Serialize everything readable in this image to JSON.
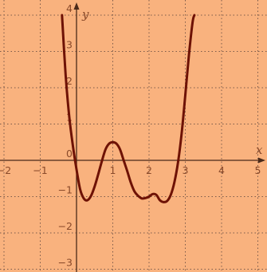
{
  "colors": {
    "background": "#f9b27e",
    "grid": "#7a5a4a",
    "axis": "#4a2a1a",
    "curve": "#6e1205",
    "text": "#8a4a2a"
  },
  "chart_data": {
    "type": "line",
    "title": "",
    "xlabel": "x",
    "ylabel": "y",
    "xlim": [
      -2.1,
      5.1
    ],
    "ylim": [
      -3.15,
      4.1
    ],
    "grid": true,
    "grid_style": "dotted",
    "x_ticks": [
      {
        "value": -2,
        "label": "−2"
      },
      {
        "value": -1,
        "label": "−1"
      },
      {
        "value": 1,
        "label": "1"
      },
      {
        "value": 2,
        "label": "2"
      },
      {
        "value": 3,
        "label": "3"
      },
      {
        "value": 4,
        "label": "4"
      },
      {
        "value": 5,
        "label": "5"
      }
    ],
    "y_ticks": [
      {
        "value": -3,
        "label": "−3"
      },
      {
        "value": -2,
        "label": "−2"
      },
      {
        "value": -1,
        "label": "−1"
      },
      {
        "value": 0,
        "label": "0"
      },
      {
        "value": 1,
        "label": "1"
      },
      {
        "value": 2,
        "label": "2"
      },
      {
        "value": 3,
        "label": "3"
      },
      {
        "value": 4,
        "label": "4"
      }
    ],
    "series": [
      {
        "x": [
          -0.4,
          -0.3,
          -0.2,
          -0.1,
          0.0,
          0.1,
          0.2,
          0.3,
          0.4,
          0.5,
          0.6,
          0.7,
          0.8,
          0.9,
          1.0,
          1.1,
          1.2,
          1.3,
          1.4,
          1.5,
          1.6,
          1.7,
          1.8,
          1.9,
          2.0,
          2.1,
          2.2,
          2.3,
          2.4,
          2.5,
          2.6,
          2.7,
          2.8,
          2.9,
          3.0,
          3.1,
          3.2,
          3.25
        ],
        "y": [
          4.0,
          2.35,
          1.2,
          0.4,
          -0.25,
          -0.8,
          -1.05,
          -1.1,
          -0.98,
          -0.72,
          -0.38,
          -0.02,
          0.3,
          0.46,
          0.5,
          0.46,
          0.3,
          0.0,
          -0.3,
          -0.62,
          -0.86,
          -0.98,
          -1.05,
          -1.04,
          -1.0,
          -0.93,
          -0.95,
          -1.1,
          -1.15,
          -1.12,
          -0.95,
          -0.6,
          -0.05,
          0.75,
          1.8,
          2.9,
          3.8,
          4.0
        ]
      }
    ]
  }
}
